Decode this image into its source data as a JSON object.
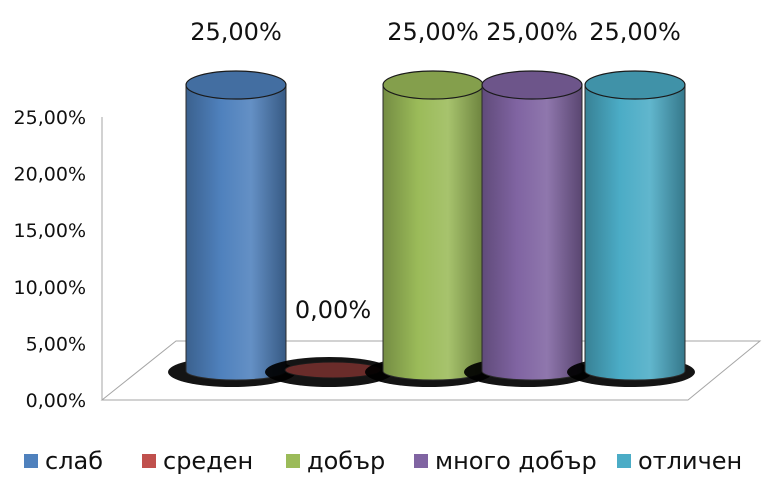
{
  "chart_data": {
    "type": "bar",
    "title": "",
    "xlabel": "",
    "ylabel": "",
    "categories": [
      "слаб",
      "среден",
      "добър",
      "много добър",
      "отличен"
    ],
    "values": [
      25.0,
      0.0,
      25.0,
      25.0,
      25.0
    ],
    "data_labels": [
      "25,00%",
      "0,00%",
      "25,00%",
      "25,00%",
      "25,00%"
    ],
    "colors": [
      "#4f81bd",
      "#c0504d",
      "#9bbb59",
      "#8064a2",
      "#4bacc6"
    ],
    "ylim": [
      0,
      25
    ],
    "y_ticks": [
      "0,00%",
      "5,00%",
      "10,00%",
      "15,00%",
      "20,00%",
      "25,00%"
    ],
    "grid": false,
    "legend_position": "bottom",
    "style": "3d-cylinder"
  }
}
